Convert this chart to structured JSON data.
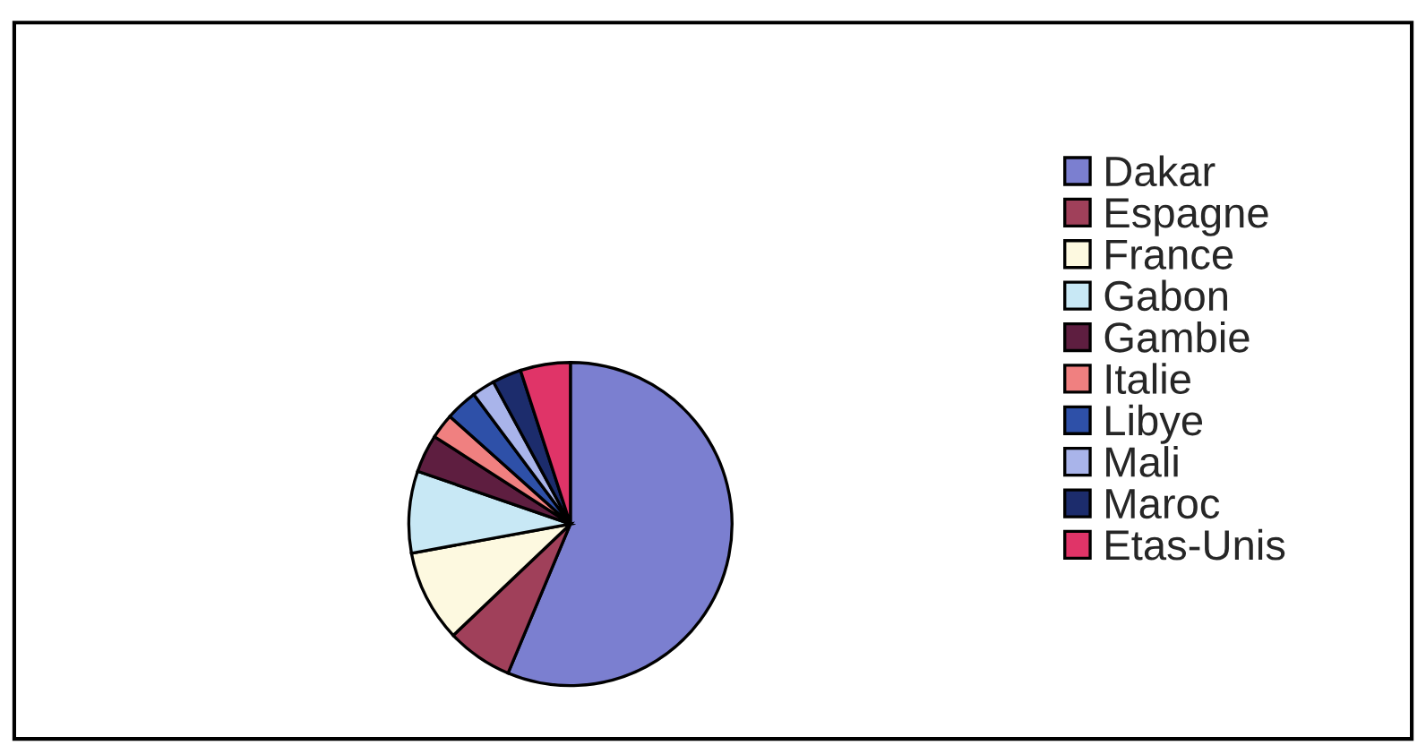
{
  "chart_data": {
    "type": "pie",
    "categories": [
      "Dakar",
      "Espagne",
      "France",
      "Gabon",
      "Gambie",
      "Italie",
      "Libye",
      "Mali",
      "Maroc",
      "Etas-Unis"
    ],
    "values": [
      56.3,
      6.6,
      9.2,
      8.2,
      3.8,
      2.5,
      3.2,
      2.3,
      2.9,
      5.0
    ],
    "colors": [
      "#7b7fd0",
      "#a0405a",
      "#fdf9e0",
      "#c8e8f5",
      "#5e1e40",
      "#f08080",
      "#2e50a8",
      "#a9b4ea",
      "#1c2c6c",
      "#e03468"
    ],
    "legend": "right"
  }
}
